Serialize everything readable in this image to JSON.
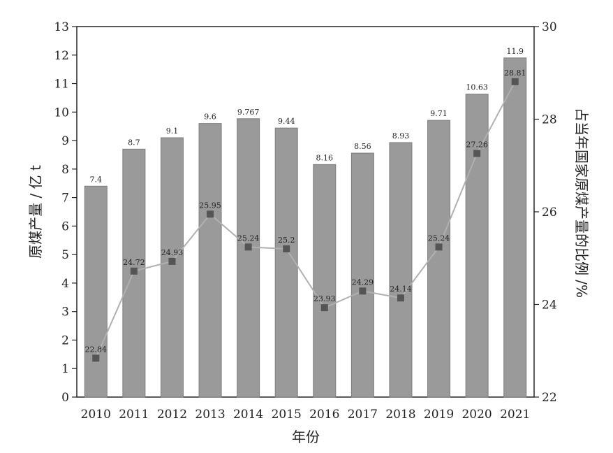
{
  "chart_data": {
    "type": "bar",
    "title": "",
    "xlabel": "年份",
    "ylabel": "原煤产量 / 亿 t",
    "y2label": "占当年国家原煤产量的比例 /%",
    "categories": [
      "2010",
      "2011",
      "2012",
      "2013",
      "2014",
      "2015",
      "2016",
      "2017",
      "2018",
      "2019",
      "2020",
      "2021"
    ],
    "ylim": [
      0,
      13
    ],
    "yticks": [
      0,
      1,
      2,
      3,
      4,
      5,
      6,
      7,
      8,
      9,
      10,
      11,
      12,
      13
    ],
    "y2lim": [
      22,
      30
    ],
    "y2ticks": [
      22,
      24,
      26,
      28,
      30
    ],
    "series": [
      {
        "name": "原煤产量",
        "type": "bar",
        "axis": "left",
        "values": [
          7.4,
          8.7,
          9.1,
          9.6,
          9.767,
          9.44,
          8.16,
          8.56,
          8.93,
          9.71,
          10.63,
          11.9
        ],
        "labels": [
          "7.4",
          "8.7",
          "9.1",
          "9.6",
          "9.767",
          "9.44",
          "8.16",
          "8.56",
          "8.93",
          "9.71",
          "10.63",
          "11.9"
        ],
        "color": "#9a9a9a"
      },
      {
        "name": "占当年国家原煤产量的比例",
        "type": "line",
        "axis": "right",
        "values": [
          22.84,
          24.72,
          24.93,
          25.95,
          25.24,
          25.2,
          23.93,
          24.29,
          24.14,
          25.24,
          27.26,
          28.81
        ],
        "labels": [
          "22.84",
          "24.72",
          "24.93",
          "25.95",
          "25.24",
          "25.2",
          "23.93",
          "24.29",
          "24.14",
          "25.24",
          "27.26",
          "28.81"
        ],
        "color": "#b0b0b0",
        "marker_color": "#555555"
      }
    ]
  }
}
